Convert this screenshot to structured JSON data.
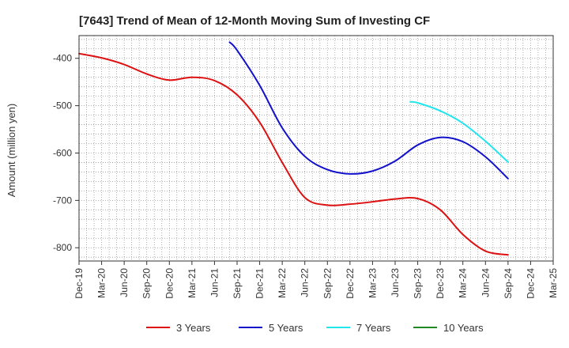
{
  "chart_data": {
    "type": "line",
    "title": "[7643]  Trend of Mean of 12-Month Moving Sum of Investing CF",
    "ylabel": "Amount (million yen)",
    "xlabel": "",
    "ylim": [
      -828,
      -352
    ],
    "yticks": [
      -400,
      -500,
      -600,
      -700,
      -800
    ],
    "categories": [
      "Dec-19",
      "Mar-20",
      "Jun-20",
      "Sep-20",
      "Dec-20",
      "Mar-21",
      "Jun-21",
      "Sep-21",
      "Dec-21",
      "Mar-22",
      "Jun-22",
      "Sep-22",
      "Dec-22",
      "Mar-23",
      "Jun-23",
      "Sep-23",
      "Dec-23",
      "Mar-24",
      "Jun-24",
      "Sep-24",
      "Dec-24",
      "Mar-25"
    ],
    "grid": true,
    "legend_position": "bottom",
    "series": [
      {
        "name": "3 Years",
        "color": "#dd1111",
        "points": [
          [
            0,
            -390
          ],
          [
            1,
            -399
          ],
          [
            2,
            -413
          ],
          [
            3,
            -433
          ],
          [
            4,
            -446
          ],
          [
            5,
            -440
          ],
          [
            6,
            -447
          ],
          [
            7,
            -477
          ],
          [
            8,
            -535
          ],
          [
            9,
            -620
          ],
          [
            10,
            -694
          ],
          [
            11,
            -710
          ],
          [
            12,
            -708
          ],
          [
            13,
            -703
          ],
          [
            14,
            -697
          ],
          [
            15,
            -696
          ],
          [
            16,
            -720
          ],
          [
            17,
            -772
          ],
          [
            18,
            -807
          ],
          [
            19,
            -815
          ]
        ]
      },
      {
        "name": "5 Years",
        "color": "#1111cc",
        "points": [
          [
            6.67,
            -366
          ],
          [
            7,
            -383
          ],
          [
            8,
            -457
          ],
          [
            9,
            -547
          ],
          [
            10,
            -607
          ],
          [
            11,
            -635
          ],
          [
            12,
            -644
          ],
          [
            13,
            -638
          ],
          [
            14,
            -617
          ],
          [
            15,
            -583
          ],
          [
            16,
            -567
          ],
          [
            17,
            -576
          ],
          [
            18,
            -608
          ],
          [
            19,
            -654
          ]
        ]
      },
      {
        "name": "7 Years",
        "color": "#22e5ee",
        "points": [
          [
            14.67,
            -492
          ],
          [
            15,
            -494
          ],
          [
            16,
            -511
          ],
          [
            17,
            -537
          ],
          [
            18,
            -575
          ],
          [
            19,
            -619
          ]
        ]
      },
      {
        "name": "10 Years",
        "color": "#228822",
        "points": []
      }
    ]
  }
}
